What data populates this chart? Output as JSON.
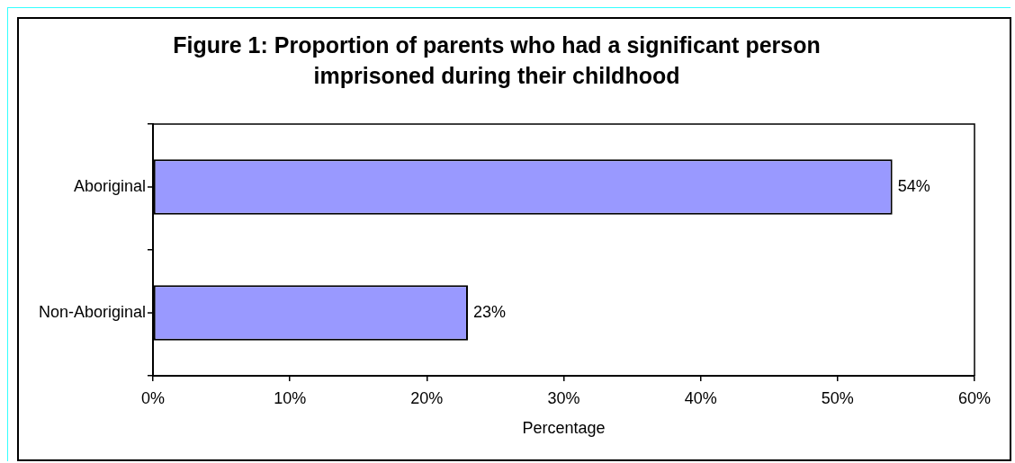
{
  "chart_data": {
    "type": "bar",
    "orientation": "horizontal",
    "title": "Figure 1: Proportion of parents who had a significant person imprisoned during their childhood",
    "xlabel": "Percentage",
    "categories": [
      "Aboriginal",
      "Non-Aboriginal"
    ],
    "values": [
      54,
      23
    ],
    "color": "#9999ff",
    "value_labels": [
      "54%",
      "23%"
    ],
    "xlim": [
      0,
      60
    ],
    "xticks": [
      {
        "value": 0,
        "label": "0%"
      },
      {
        "value": 10,
        "label": "10%"
      },
      {
        "value": 20,
        "label": "20%"
      },
      {
        "value": 30,
        "label": "30%"
      },
      {
        "value": 40,
        "label": "40%"
      },
      {
        "value": 50,
        "label": "50%"
      },
      {
        "value": 60,
        "label": "60%"
      }
    ],
    "grid": false,
    "legend": false
  }
}
